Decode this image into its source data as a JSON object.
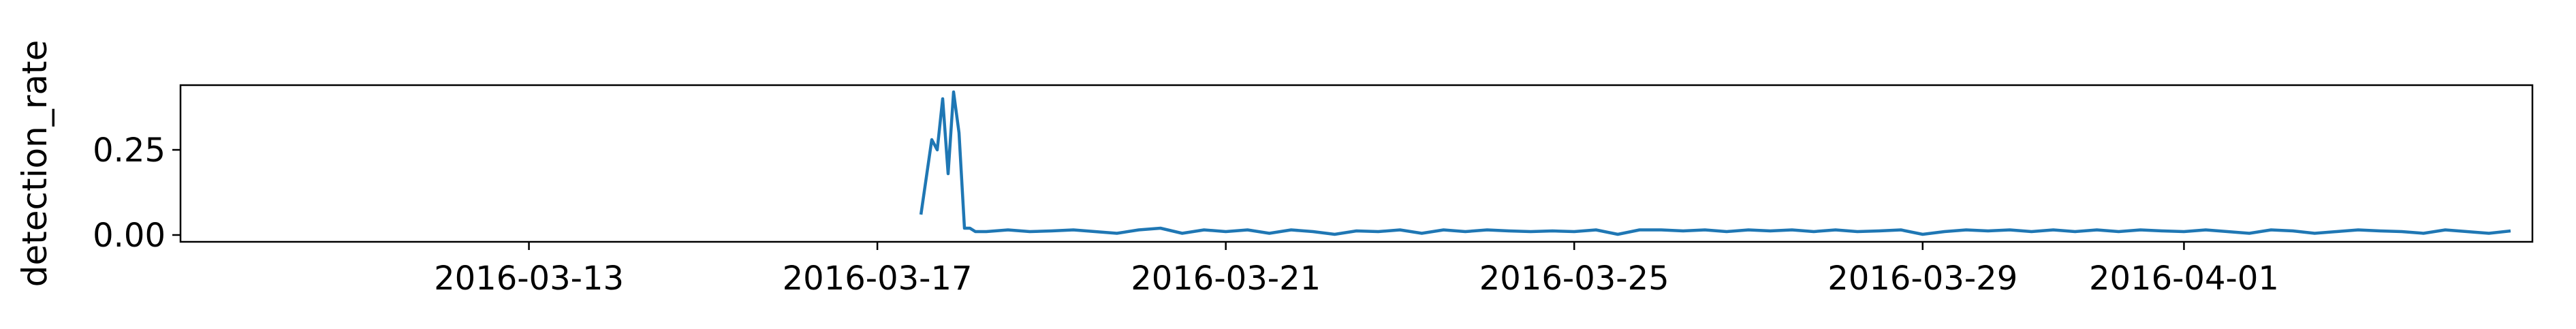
{
  "chart_data": {
    "type": "line",
    "title": "",
    "xlabel": "",
    "ylabel": "detection_rate",
    "xlim": [
      "2016-03-09",
      "2016-04-05"
    ],
    "ylim": [
      -0.02,
      0.44
    ],
    "grid": false,
    "legend": "none",
    "x_ticks": [
      "2016-03-13",
      "2016-03-17",
      "2016-03-21",
      "2016-03-25",
      "2016-03-29",
      "2016-04-01"
    ],
    "y_ticks": [
      {
        "value": 0.25,
        "label": "0.25"
      },
      {
        "value": 0.0,
        "label": "0.00"
      }
    ],
    "colors": {
      "line": "#1f77b4",
      "axes": "#000000",
      "background": "#ffffff"
    },
    "series": [
      {
        "x": [
          "2016-03-17 12:00",
          "2016-03-17 15:00",
          "2016-03-17 16:30",
          "2016-03-17 18:00",
          "2016-03-17 19:30",
          "2016-03-17 21:00",
          "2016-03-17 22:30",
          "2016-03-18 00:00",
          "2016-03-18 01:30",
          "2016-03-18 03:00",
          "2016-03-18 06:00",
          "2016-03-18 12:00",
          "2016-03-18 18:00",
          "2016-03-19 00:00",
          "2016-03-19 06:00",
          "2016-03-19 12:00",
          "2016-03-19 18:00",
          "2016-03-20 00:00",
          "2016-03-20 06:00",
          "2016-03-20 12:00",
          "2016-03-20 18:00",
          "2016-03-21 00:00",
          "2016-03-21 06:00",
          "2016-03-21 12:00",
          "2016-03-21 18:00",
          "2016-03-22 00:00",
          "2016-03-22 06:00",
          "2016-03-22 12:00",
          "2016-03-22 18:00",
          "2016-03-23 00:00",
          "2016-03-23 06:00",
          "2016-03-23 12:00",
          "2016-03-23 18:00",
          "2016-03-24 00:00",
          "2016-03-24 06:00",
          "2016-03-24 12:00",
          "2016-03-24 18:00",
          "2016-03-25 00:00",
          "2016-03-25 06:00",
          "2016-03-25 12:00",
          "2016-03-25 18:00",
          "2016-03-26 00:00",
          "2016-03-26 06:00",
          "2016-03-26 12:00",
          "2016-03-26 18:00",
          "2016-03-27 00:00",
          "2016-03-27 06:00",
          "2016-03-27 12:00",
          "2016-03-27 18:00",
          "2016-03-28 00:00",
          "2016-03-28 06:00",
          "2016-03-28 12:00",
          "2016-03-28 18:00",
          "2016-03-29 00:00",
          "2016-03-29 06:00",
          "2016-03-29 12:00",
          "2016-03-29 18:00",
          "2016-03-30 00:00",
          "2016-03-30 06:00",
          "2016-03-30 12:00",
          "2016-03-30 18:00",
          "2016-03-31 00:00",
          "2016-03-31 06:00",
          "2016-03-31 12:00",
          "2016-03-31 18:00",
          "2016-04-01 00:00",
          "2016-04-01 06:00",
          "2016-04-01 12:00",
          "2016-04-01 18:00",
          "2016-04-02 00:00",
          "2016-04-02 06:00",
          "2016-04-02 12:00",
          "2016-04-02 18:00",
          "2016-04-03 00:00",
          "2016-04-03 06:00",
          "2016-04-03 12:00",
          "2016-04-03 18:00",
          "2016-04-04 00:00",
          "2016-04-04 06:00",
          "2016-04-04 12:00",
          "2016-04-04 18:00"
        ],
        "values": [
          0.06,
          0.28,
          0.25,
          0.4,
          0.18,
          0.42,
          0.3,
          0.02,
          0.02,
          0.01,
          0.01,
          0.015,
          0.01,
          0.012,
          0.015,
          0.01,
          0.005,
          0.015,
          0.02,
          0.005,
          0.015,
          0.01,
          0.015,
          0.005,
          0.015,
          0.01,
          0.002,
          0.012,
          0.01,
          0.015,
          0.005,
          0.015,
          0.01,
          0.015,
          0.012,
          0.01,
          0.012,
          0.01,
          0.015,
          0.002,
          0.015,
          0.015,
          0.012,
          0.015,
          0.01,
          0.015,
          0.012,
          0.015,
          0.01,
          0.015,
          0.01,
          0.012,
          0.015,
          0.002,
          0.01,
          0.015,
          0.012,
          0.015,
          0.01,
          0.015,
          0.01,
          0.015,
          0.01,
          0.015,
          0.012,
          0.01,
          0.015,
          0.01,
          0.005,
          0.015,
          0.012,
          0.005,
          0.01,
          0.015,
          0.012,
          0.01,
          0.005,
          0.015,
          0.01,
          0.005,
          0.012
        ]
      }
    ]
  }
}
